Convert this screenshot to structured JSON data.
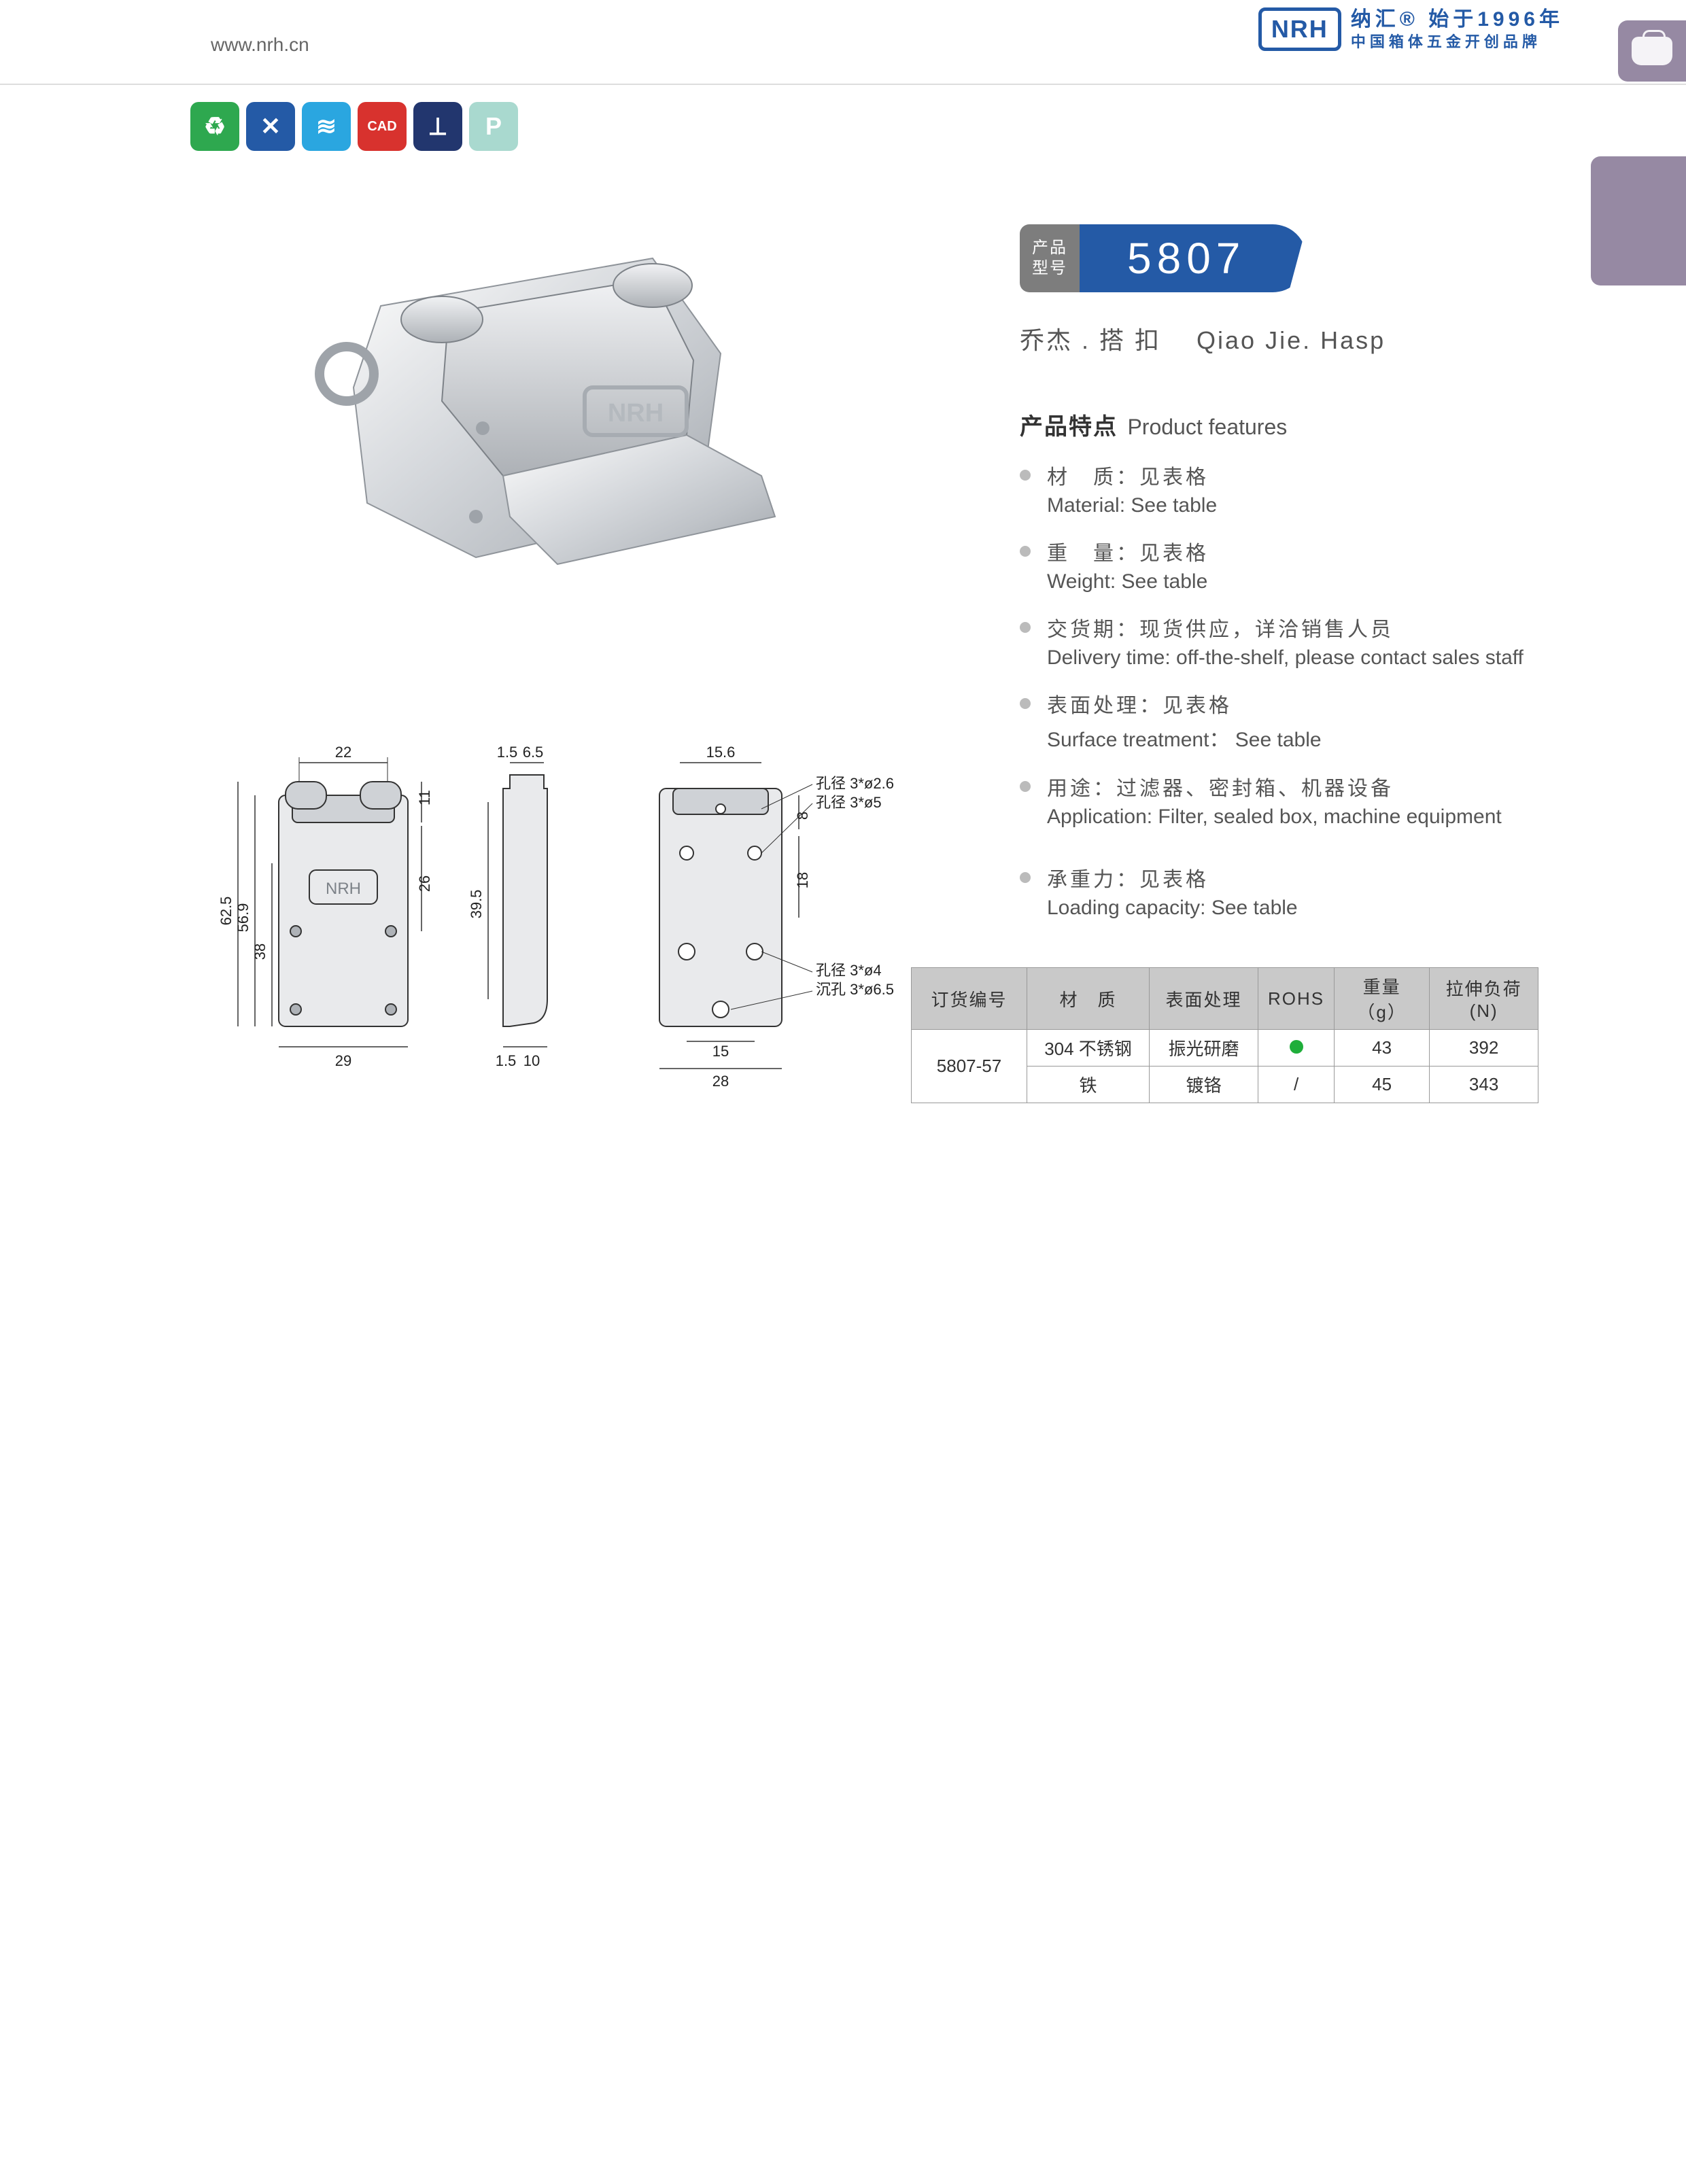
{
  "header": {
    "website": "www.nrh.cn",
    "logo_text": "NRH",
    "tagline_top": "纳汇® 始于1996年",
    "tagline_bottom": "中国箱体五金开创品牌",
    "logo_border_color": "#245aa6",
    "logo_text_color": "#245aa6"
  },
  "side_panel_color": "#9689a3",
  "icon_row": [
    {
      "name": "eco-icon",
      "bg": "#2ea84f",
      "glyph": "♻"
    },
    {
      "name": "tools-icon",
      "bg": "#245aa6",
      "glyph": "✕"
    },
    {
      "name": "spring-icon",
      "bg": "#2aa6e0",
      "glyph": "≋"
    },
    {
      "name": "cad-icon",
      "bg": "#d8322e",
      "glyph": "CAD"
    },
    {
      "name": "screw-icon",
      "bg": "#22366e",
      "glyph": "⟂"
    },
    {
      "name": "p-icon",
      "bg": "#a9d9cf",
      "glyph": "P"
    }
  ],
  "model": {
    "label_line1": "产品",
    "label_line2": "型号",
    "number": "5807",
    "label_bg": "#7d7d7d",
    "number_bg": "#245aa6"
  },
  "product_name": {
    "cn": "乔杰 . 搭 扣",
    "en": "Qiao Jie. Hasp"
  },
  "features": {
    "heading_cn": "产品特点",
    "heading_en": "Product features",
    "items": [
      {
        "cn": "材　质：见表格",
        "en": "Material: See table"
      },
      {
        "cn": "重　量：见表格",
        "en": "Weight: See table"
      },
      {
        "cn": "交货期：现货供应，详洽销售人员",
        "en": "Delivery time: off-the-shelf, please contact sales staff"
      },
      {
        "cn": "表面处理：见表格",
        "en": "Surface treatment： See table"
      },
      {
        "cn": "用途：过滤器、密封箱、机器设备",
        "en": "Application: Filter, sealed box, machine equipment"
      },
      {
        "cn": "承重力：见表格",
        "en": "Loading capacity: See table"
      }
    ]
  },
  "drawings": {
    "stroke": "#333333",
    "fill": "#e9eaec",
    "dim_font_size": 22,
    "view_front": {
      "dims": {
        "w_top": "22",
        "total_h": "62.5",
        "inner_h": "56.9",
        "mid_h": "38",
        "h_11": "11",
        "h_26": "26",
        "w_bot": "29"
      }
    },
    "view_side": {
      "dims": {
        "t1": "1.5",
        "gap": "6.5",
        "bot_t": "1.5",
        "bot_w": "10",
        "h": "39.5"
      }
    },
    "view_back": {
      "dims": {
        "w_top": "15.6",
        "h_8": "8",
        "h_18": "18",
        "w_15": "15",
        "w_28": "28"
      },
      "notes": {
        "hole1": "孔径 3*ø2.6",
        "hole2": "孔径 3*ø5",
        "hole3": "孔径 3*ø4",
        "hole4": "沉孔 3*ø6.5"
      }
    }
  },
  "spec_table": {
    "headers": [
      "订货编号",
      "材　质",
      "表面处理",
      "ROHS",
      "重量（g）",
      "拉伸负荷 (N)"
    ],
    "order_no": "5807-57",
    "rows": [
      {
        "material": "304 不锈钢",
        "surface": "振光研磨",
        "rohs": "dot",
        "weight": "43",
        "load": "392"
      },
      {
        "material": "铁",
        "surface": "镀铬",
        "rohs": "/",
        "weight": "45",
        "load": "343"
      }
    ],
    "header_bg": "#c9c9c9",
    "border_color": "#999999",
    "rohs_dot_color": "#1fae3a"
  }
}
